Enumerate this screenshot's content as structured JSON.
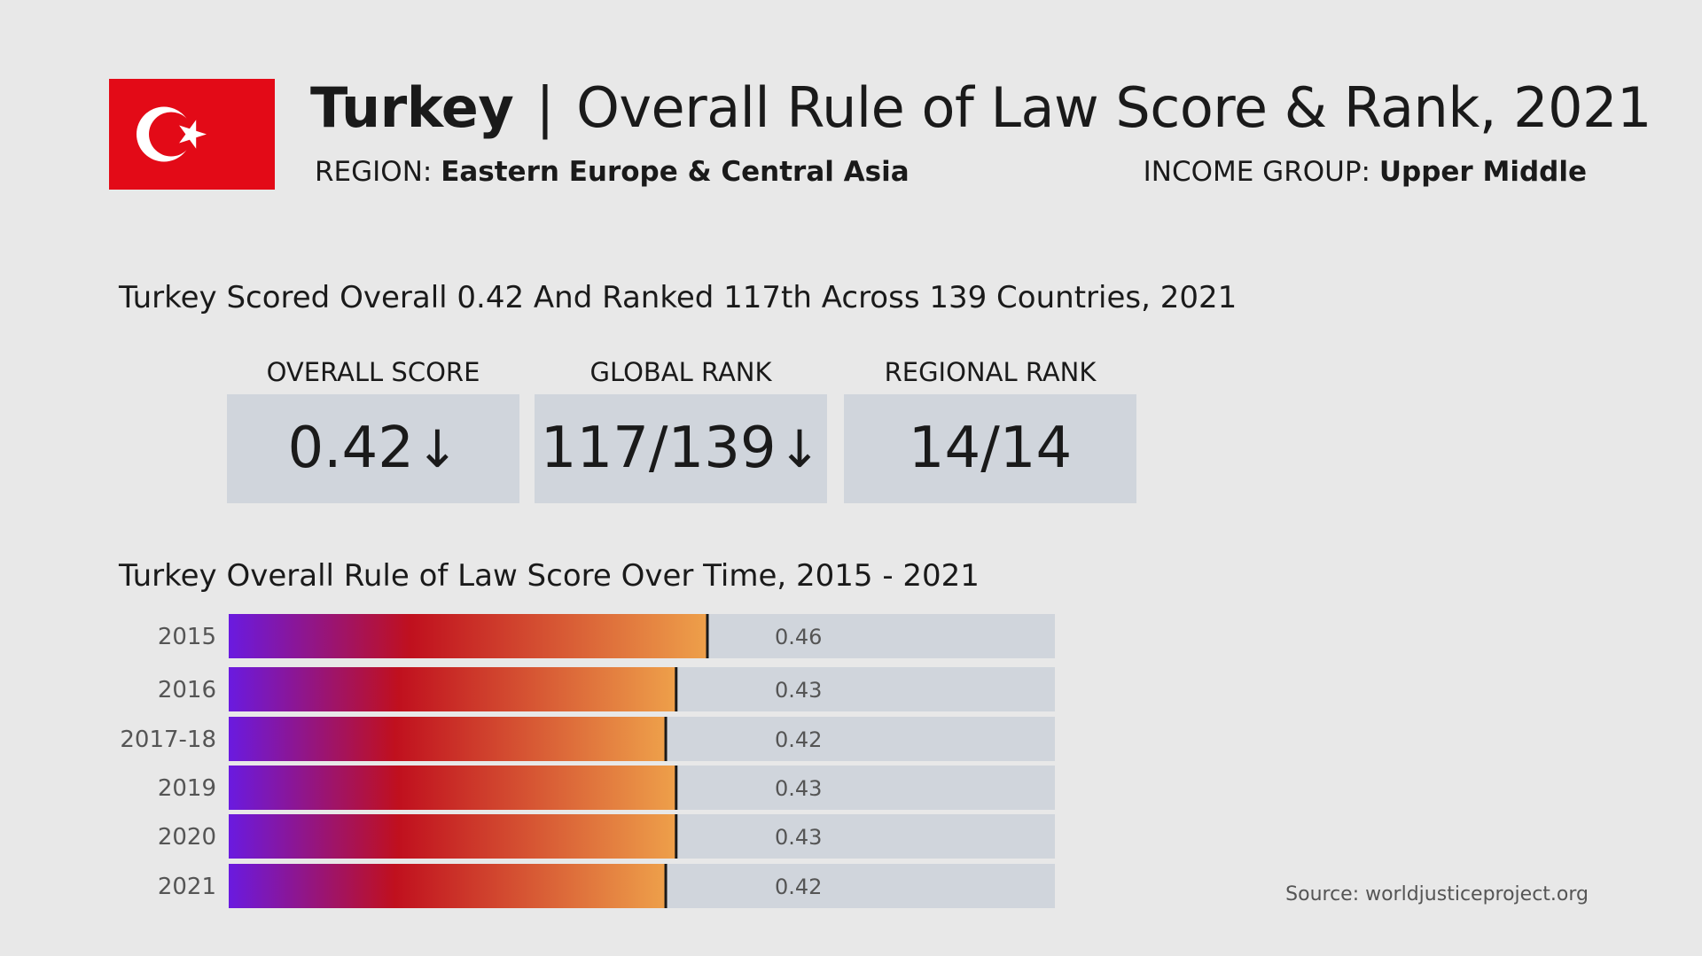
{
  "header": {
    "country": "Turkey",
    "separator": "|",
    "title": "Overall Rule of Law Score & Rank, 2021",
    "region_label": "REGION:",
    "region_value": "Eastern Europe & Central Asia",
    "income_label": "INCOME GROUP:",
    "income_value": "Upper Middle"
  },
  "summary": "Turkey Scored Overall 0.42 And Ranked 117th Across 139 Countries, 2021",
  "cards": [
    {
      "label": "OVERALL SCORE",
      "value": "0.42",
      "trend": "↓"
    },
    {
      "label": "GLOBAL RANK",
      "value": "117/139",
      "trend": "↓"
    },
    {
      "label": "REGIONAL RANK",
      "value": "14/14",
      "trend": ""
    }
  ],
  "source": "Source: worldjusticeproject.org",
  "colors": {
    "background": "#e8e8e8",
    "track": "#d0d5dc",
    "flag_red": "#e30a17",
    "gradient_start": "#6a1ae0",
    "gradient_mid": "#c0101e",
    "gradient_end": "#eea04a"
  },
  "chart_data": {
    "type": "bar",
    "orientation": "horizontal",
    "title": "Turkey Overall Rule of Law Score Over Time, 2015 - 2021",
    "categories": [
      "2015",
      "2016",
      "2017-18",
      "2019",
      "2020",
      "2021"
    ],
    "values": [
      0.46,
      0.43,
      0.42,
      0.43,
      0.43,
      0.42
    ],
    "value_labels": [
      "0.46",
      "0.43",
      "0.42",
      "0.43",
      "0.43",
      "0.42"
    ],
    "xlim": [
      0,
      0.8
    ],
    "grid": false,
    "legend": "none"
  }
}
